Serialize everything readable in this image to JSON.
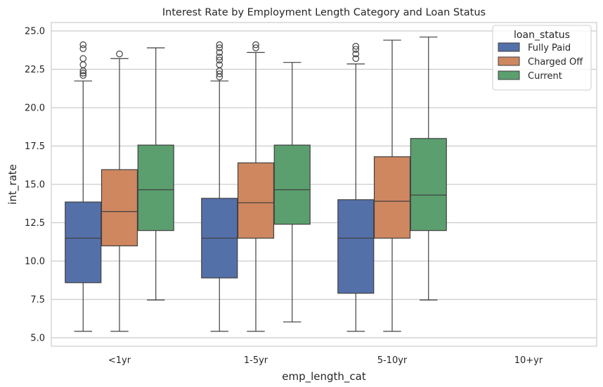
{
  "chart_data": {
    "type": "boxplot",
    "title": "Interest Rate by Employment Length Category and Loan Status",
    "xlabel": "emp_length_cat",
    "ylabel": "int_rate",
    "categories": [
      "<1yr",
      "1-5yr",
      "5-10yr",
      "10+yr"
    ],
    "y_ticks": [
      "5.0",
      "7.5",
      "10.0",
      "12.5",
      "15.0",
      "17.5",
      "20.0",
      "22.5",
      "25.0"
    ],
    "ylim": [
      4.45,
      25.55
    ],
    "grid": "horizontal",
    "legend": {
      "title": "loan_status",
      "position": "top-right"
    },
    "series": [
      {
        "name": "Fully Paid",
        "color": "#5470a9",
        "boxes": [
          {
            "category": "<1yr",
            "whisker_low": 5.42,
            "q1": 8.59,
            "median": 11.49,
            "q3": 13.85,
            "whisker_high": 21.74,
            "outliers": [
              22.1,
              22.25,
              22.4,
              22.8,
              23.2,
              23.85,
              24.1
            ]
          },
          {
            "category": "1-5yr",
            "whisker_low": 5.42,
            "q1": 8.9,
            "median": 11.49,
            "q3": 14.09,
            "whisker_high": 21.74,
            "outliers": [
              22.0,
              22.2,
              22.4,
              22.8,
              23.1,
              23.3,
              23.6,
              23.9,
              24.1
            ]
          },
          {
            "category": "5-10yr",
            "whisker_low": 5.42,
            "q1": 7.9,
            "median": 11.49,
            "q3": 14.0,
            "whisker_high": 22.85,
            "outliers": [
              23.2,
              23.5,
              23.8,
              24.0
            ]
          },
          {
            "category": "10+yr",
            "empty": true
          }
        ]
      },
      {
        "name": "Charged Off",
        "color": "#cf8760",
        "boxes": [
          {
            "category": "<1yr",
            "whisker_low": 5.42,
            "q1": 10.99,
            "median": 13.23,
            "q3": 15.96,
            "whisker_high": 23.2,
            "outliers": [
              23.5
            ]
          },
          {
            "category": "1-5yr",
            "whisker_low": 5.42,
            "q1": 11.49,
            "median": 13.8,
            "q3": 16.4,
            "whisker_high": 23.6,
            "outliers": [
              23.9,
              24.1
            ]
          },
          {
            "category": "5-10yr",
            "whisker_low": 5.42,
            "q1": 11.49,
            "median": 13.9,
            "q3": 16.8,
            "whisker_high": 24.4,
            "outliers": []
          },
          {
            "category": "10+yr",
            "empty": true
          }
        ]
      },
      {
        "name": "Current",
        "color": "#5b9f6e",
        "boxes": [
          {
            "category": "<1yr",
            "whisker_low": 7.46,
            "q1": 11.99,
            "median": 14.65,
            "q3": 17.56,
            "whisker_high": 23.9,
            "outliers": []
          },
          {
            "category": "1-5yr",
            "whisker_low": 6.03,
            "q1": 12.4,
            "median": 14.65,
            "q3": 17.56,
            "whisker_high": 22.95,
            "outliers": []
          },
          {
            "category": "5-10yr",
            "whisker_low": 7.46,
            "q1": 11.99,
            "median": 14.3,
            "q3": 17.99,
            "whisker_high": 24.6,
            "outliers": []
          },
          {
            "category": "10+yr",
            "empty": true
          }
        ]
      }
    ]
  }
}
